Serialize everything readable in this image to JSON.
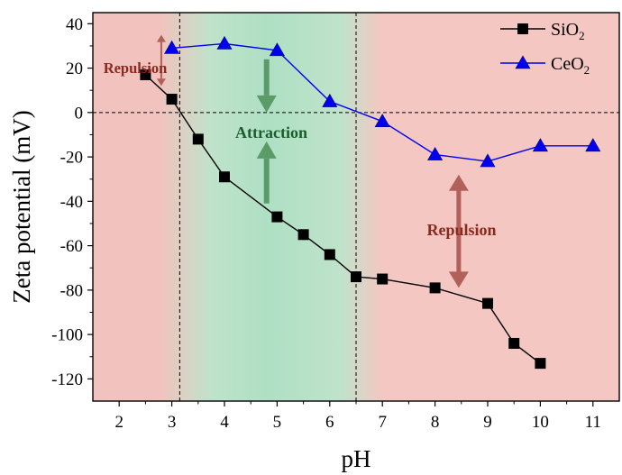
{
  "chart_data": {
    "type": "line",
    "xlabel": "pH",
    "ylabel": "Zeta potential (mV)",
    "xlim": [
      1.5,
      11.5
    ],
    "ylim": [
      -130,
      45
    ],
    "x_ticks": [
      2,
      3,
      4,
      5,
      6,
      7,
      8,
      9,
      10,
      11
    ],
    "y_ticks": [
      40,
      20,
      0,
      -20,
      -40,
      -60,
      -80,
      -100,
      -120
    ],
    "vertical_reference_lines": [
      3.15,
      6.5
    ],
    "zero_line": 0,
    "legend": {
      "placement": "top-right"
    },
    "series": [
      {
        "name": "SiO2",
        "legend_label": {
          "base": "SiO",
          "sub": "2"
        },
        "marker": "square",
        "color": "#000000",
        "x": [
          2.5,
          3,
          3.5,
          4,
          5,
          5.5,
          6,
          6.5,
          7,
          8,
          9,
          9.5,
          10
        ],
        "y": [
          17,
          6,
          -12,
          -29,
          -47,
          -55,
          -64,
          -74,
          -75,
          -79,
          -86,
          -104,
          -113
        ]
      },
      {
        "name": "CeO2",
        "legend_label": {
          "base": "CeO",
          "sub": "2"
        },
        "marker": "triangle",
        "color": "#0000ee",
        "x": [
          3,
          4,
          5,
          6,
          7,
          8,
          9,
          10,
          11
        ],
        "y": [
          29,
          31,
          28,
          5,
          -4,
          -19,
          -22,
          -15,
          -15
        ]
      }
    ],
    "regions": [
      {
        "x_from": 1.5,
        "x_to": 3.15,
        "color": "#f2c2be"
      },
      {
        "x_from": 3.15,
        "x_to": 6.5,
        "color": "#bfe3cb"
      },
      {
        "x_from": 6.5,
        "x_to": 11.5,
        "color": "#f4c7c2"
      }
    ],
    "annotations": {
      "repulsion_left": "Repulsion",
      "attraction": "Attraction",
      "repulsion_right": "Repulsion"
    },
    "arrows": [
      {
        "x": 2.8,
        "y_from": 35,
        "y_to": 12,
        "color": "#b2605a",
        "style": "thin-double"
      },
      {
        "x": 4.8,
        "y_from": 24,
        "y_to": 0,
        "color": "#5a9b68",
        "style": "down"
      },
      {
        "x": 4.8,
        "y_from": -41,
        "y_to": -13,
        "color": "#5a9b68",
        "style": "up"
      },
      {
        "x": 8.45,
        "y_from": -28,
        "y_to": -79,
        "color": "#b2605a",
        "style": "double"
      }
    ],
    "colors": {
      "repulsion_text": "#8a2a1f",
      "attraction_text": "#1a5e2a",
      "repulsion_arrow": "#b2605a",
      "attraction_arrow": "#5a9b68"
    }
  }
}
